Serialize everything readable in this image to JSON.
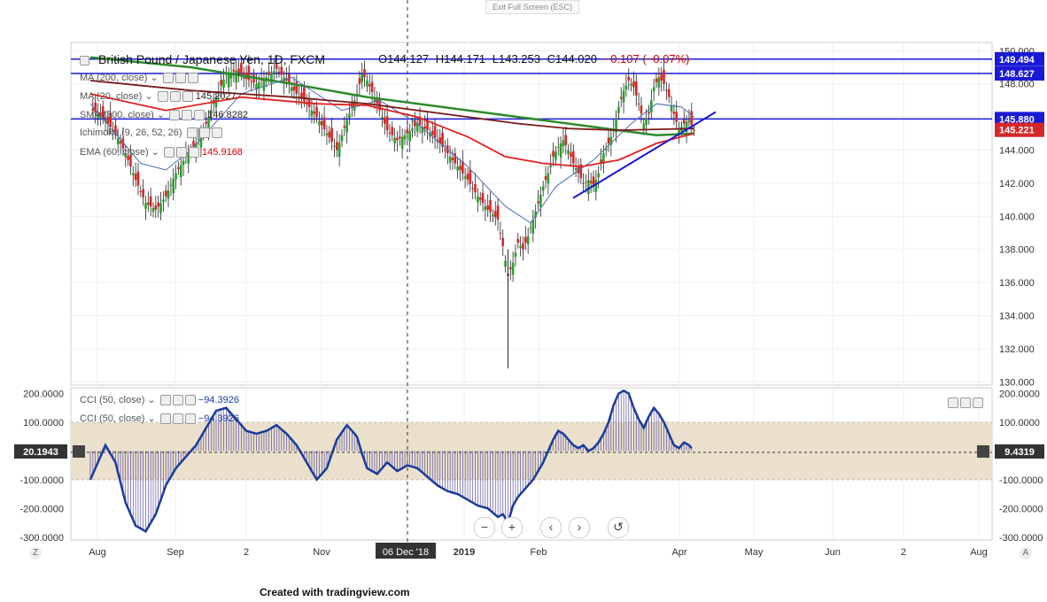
{
  "toolbar": {
    "exit_fullscreen": "Exit Full Screen (ESC)"
  },
  "header": {
    "symbol": "British Pound / Japanese Yen, 1D, FXCM",
    "open": "O144.127",
    "high": "H144.171",
    "low": "L143.253",
    "close": "C144.020",
    "change": "−0.107 (−0.07%)"
  },
  "indicators": [
    {
      "label": "MA (200, close)",
      "value": ""
    },
    {
      "label": "MA (20, close)",
      "value": "145.2027"
    },
    {
      "label": "SMA (300, close)",
      "value": "146.8282"
    },
    {
      "label": "Ichimoku (9, 26, 52, 26)",
      "value": ""
    },
    {
      "label": "EMA (60, close)",
      "value": "145.9168"
    }
  ],
  "cci_legends": [
    {
      "label": "CCI (50, close)",
      "value": "−94.3926"
    },
    {
      "label": "CCI (50, close)",
      "value": "−94.3926"
    }
  ],
  "colors": {
    "up": "#27a127",
    "down": "#d62728",
    "ma200": "#2c8a2c",
    "sma300": "#7a1a1a",
    "ema60": "#e02020",
    "ma20": "#4a6fb0",
    "hline": "#1a1ad6",
    "cci": "#1a3a9c",
    "band": "#eae0cc"
  },
  "price_tags": [
    {
      "text": "149.494",
      "price": 149.494,
      "color": "#1a1ad6"
    },
    {
      "text": "148.627",
      "price": 148.627,
      "color": "#1a1ad6"
    },
    {
      "text": "145.880",
      "price": 145.88,
      "color": "#1a1ad6"
    },
    {
      "text": "145.221",
      "price": 145.221,
      "color": "#d62728"
    }
  ],
  "cci_tags": [
    {
      "text": "20.1943",
      "side": "left"
    },
    {
      "text": "9.4319",
      "side": "right"
    }
  ],
  "time_labels": [
    "Aug",
    "Sep",
    "2",
    "Nov",
    "06 Dec '18",
    "2019",
    "Feb",
    "Apr",
    "May",
    "Jun",
    "2",
    "Aug"
  ],
  "corners": {
    "left": "Z",
    "right": "A"
  },
  "footer": "Created with tradingview.com",
  "chart_data": [
    {
      "type": "candlestick",
      "title": "British Pound / Japanese Yen, 1D, FXCM",
      "ylim": [
        129.8,
        150.5
      ],
      "y_ticks": [
        "130.000",
        "132.000",
        "134.000",
        "136.000",
        "138.000",
        "140.000",
        "142.000",
        "144.000",
        "146.000",
        "148.000",
        "150.000"
      ],
      "x_ticks": [
        "Aug",
        "Sep",
        "2",
        "Nov",
        "06 Dec '18",
        "2019",
        "Feb",
        "Apr",
        "May",
        "Jun",
        "2",
        "Aug"
      ],
      "horizontal_levels": [
        149.494,
        148.627,
        145.88
      ],
      "trendline": [
        [
          143.4,
          141.1
        ],
        [
          145.0,
          146.3
        ]
      ],
      "close_path": [
        [
          0,
          146.5
        ],
        [
          6,
          145.8
        ],
        [
          10,
          145.0
        ],
        [
          14,
          143.8
        ],
        [
          18,
          142.2
        ],
        [
          22,
          140.8
        ],
        [
          26,
          140.4
        ],
        [
          30,
          141.2
        ],
        [
          34,
          142.6
        ],
        [
          38,
          143.6
        ],
        [
          42,
          144.4
        ],
        [
          46,
          145.6
        ],
        [
          50,
          147.2
        ],
        [
          54,
          148.6
        ],
        [
          58,
          148.8
        ],
        [
          62,
          148.3
        ],
        [
          66,
          148.0
        ],
        [
          70,
          148.4
        ],
        [
          74,
          148.9
        ],
        [
          78,
          148.2
        ],
        [
          82,
          147.4
        ],
        [
          86,
          146.8
        ],
        [
          90,
          146.0
        ],
        [
          94,
          145.0
        ],
        [
          98,
          144.0
        ],
        [
          102,
          145.8
        ],
        [
          106,
          147.4
        ],
        [
          108,
          148.6
        ],
        [
          110,
          148.2
        ],
        [
          114,
          146.8
        ],
        [
          118,
          145.2
        ],
        [
          122,
          144.6
        ],
        [
          126,
          145.0
        ],
        [
          130,
          145.6
        ],
        [
          134,
          145.2
        ],
        [
          138,
          144.6
        ],
        [
          142,
          143.8
        ],
        [
          146,
          143.0
        ],
        [
          150,
          142.2
        ],
        [
          154,
          141.2
        ],
        [
          158,
          140.4
        ],
        [
          162,
          139.8
        ],
        [
          164,
          138.2
        ],
        [
          166,
          136.4
        ],
        [
          168,
          137.2
        ],
        [
          170,
          138.4
        ],
        [
          172,
          138.0
        ],
        [
          174,
          138.8
        ],
        [
          176,
          139.8
        ],
        [
          178,
          140.8
        ],
        [
          180,
          141.8
        ],
        [
          182,
          142.6
        ],
        [
          184,
          143.6
        ],
        [
          186,
          144.2
        ],
        [
          188,
          144.6
        ],
        [
          190,
          144.0
        ],
        [
          192,
          143.2
        ],
        [
          194,
          142.6
        ],
        [
          196,
          142.0
        ],
        [
          198,
          142.2
        ],
        [
          200,
          141.8
        ],
        [
          202,
          142.6
        ],
        [
          204,
          143.8
        ],
        [
          206,
          144.4
        ],
        [
          208,
          145.2
        ],
        [
          210,
          146.6
        ],
        [
          212,
          147.6
        ],
        [
          214,
          148.2
        ],
        [
          216,
          147.8
        ],
        [
          218,
          146.8
        ],
        [
          220,
          145.6
        ],
        [
          222,
          146.2
        ],
        [
          224,
          147.8
        ],
        [
          226,
          148.4
        ],
        [
          228,
          148.0
        ],
        [
          230,
          147.2
        ],
        [
          232,
          146.2
        ],
        [
          234,
          145.2
        ],
        [
          236,
          145.6
        ],
        [
          238,
          145.8
        ],
        [
          240,
          145.2
        ]
      ],
      "wicks": [
        {
          "x": 166,
          "low": 130.8,
          "high": 138.0
        }
      ],
      "series": [
        {
          "name": "MA (200, close)",
          "color": "#2c8a2c",
          "points": [
            [
              0,
              149.6
            ],
            [
              40,
              149.0
            ],
            [
              80,
              148.0
            ],
            [
              110,
              147.2
            ],
            [
              140,
              146.6
            ],
            [
              170,
              146.0
            ],
            [
              190,
              145.6
            ],
            [
              210,
              145.2
            ],
            [
              225,
              144.9
            ],
            [
              240,
              145.0
            ]
          ]
        },
        {
          "name": "MA (20, close)",
          "color": "#4a6fb0",
          "points": [
            [
              0,
              146.8
            ],
            [
              20,
              143.2
            ],
            [
              30,
              142.8
            ],
            [
              40,
              144.0
            ],
            [
              60,
              147.4
            ],
            [
              80,
              148.4
            ],
            [
              100,
              146.4
            ],
            [
              115,
              147.0
            ],
            [
              130,
              145.6
            ],
            [
              150,
              143.0
            ],
            [
              165,
              140.6
            ],
            [
              175,
              139.6
            ],
            [
              185,
              141.8
            ],
            [
              200,
              143.4
            ],
            [
              215,
              145.6
            ],
            [
              225,
              146.8
            ],
            [
              235,
              146.6
            ],
            [
              240,
              146.0
            ]
          ]
        },
        {
          "name": "SMA (300, close)",
          "color": "#7a1a1a",
          "points": [
            [
              0,
              148.2
            ],
            [
              40,
              147.6
            ],
            [
              80,
              147.2
            ],
            [
              110,
              146.8
            ],
            [
              140,
              146.2
            ],
            [
              170,
              145.6
            ],
            [
              190,
              145.3
            ],
            [
              210,
              145.2
            ],
            [
              240,
              145.3
            ]
          ]
        },
        {
          "name": "EMA (60, close)",
          "color": "#e02020",
          "points": [
            [
              0,
              147.4
            ],
            [
              30,
              146.4
            ],
            [
              60,
              147.2
            ],
            [
              90,
              146.8
            ],
            [
              110,
              146.7
            ],
            [
              130,
              146.0
            ],
            [
              150,
              144.8
            ],
            [
              165,
              143.6
            ],
            [
              180,
              143.2
            ],
            [
              195,
              143.0
            ],
            [
              210,
              143.4
            ],
            [
              225,
              144.4
            ],
            [
              240,
              145.0
            ]
          ]
        }
      ]
    },
    {
      "type": "line",
      "title": "CCI (50, close)",
      "ylim": [
        -310,
        220
      ],
      "y_ticks": [
        "200.0000",
        "100.0000",
        "-100.0000",
        "-200.0000",
        "-300.0000"
      ],
      "band": [
        -100,
        100
      ],
      "points": [
        [
          0,
          -100
        ],
        [
          6,
          20
        ],
        [
          10,
          -40
        ],
        [
          14,
          -180
        ],
        [
          18,
          -260
        ],
        [
          22,
          -280
        ],
        [
          26,
          -220
        ],
        [
          30,
          -120
        ],
        [
          34,
          -60
        ],
        [
          38,
          -20
        ],
        [
          42,
          20
        ],
        [
          46,
          80
        ],
        [
          50,
          140
        ],
        [
          54,
          150
        ],
        [
          58,
          110
        ],
        [
          62,
          70
        ],
        [
          66,
          60
        ],
        [
          70,
          70
        ],
        [
          74,
          90
        ],
        [
          78,
          60
        ],
        [
          82,
          20
        ],
        [
          86,
          -40
        ],
        [
          90,
          -100
        ],
        [
          94,
          -60
        ],
        [
          98,
          40
        ],
        [
          102,
          90
        ],
        [
          106,
          50
        ],
        [
          108,
          -10
        ],
        [
          110,
          -60
        ],
        [
          114,
          -80
        ],
        [
          118,
          -40
        ],
        [
          122,
          -70
        ],
        [
          126,
          -50
        ],
        [
          130,
          -60
        ],
        [
          134,
          -90
        ],
        [
          138,
          -120
        ],
        [
          142,
          -140
        ],
        [
          146,
          -150
        ],
        [
          150,
          -170
        ],
        [
          154,
          -190
        ],
        [
          158,
          -200
        ],
        [
          162,
          -230
        ],
        [
          164,
          -220
        ],
        [
          166,
          -250
        ],
        [
          168,
          -190
        ],
        [
          170,
          -160
        ],
        [
          172,
          -140
        ],
        [
          174,
          -120
        ],
        [
          176,
          -100
        ],
        [
          178,
          -70
        ],
        [
          180,
          -40
        ],
        [
          182,
          0
        ],
        [
          184,
          40
        ],
        [
          186,
          70
        ],
        [
          188,
          60
        ],
        [
          190,
          40
        ],
        [
          192,
          20
        ],
        [
          194,
          10
        ],
        [
          196,
          20
        ],
        [
          198,
          0
        ],
        [
          200,
          10
        ],
        [
          202,
          30
        ],
        [
          204,
          60
        ],
        [
          206,
          100
        ],
        [
          208,
          160
        ],
        [
          210,
          200
        ],
        [
          212,
          210
        ],
        [
          214,
          200
        ],
        [
          216,
          150
        ],
        [
          218,
          110
        ],
        [
          220,
          80
        ],
        [
          222,
          120
        ],
        [
          224,
          150
        ],
        [
          226,
          130
        ],
        [
          228,
          100
        ],
        [
          230,
          60
        ],
        [
          232,
          20
        ],
        [
          234,
          10
        ],
        [
          236,
          30
        ],
        [
          238,
          20
        ],
        [
          240,
          0
        ]
      ]
    }
  ]
}
